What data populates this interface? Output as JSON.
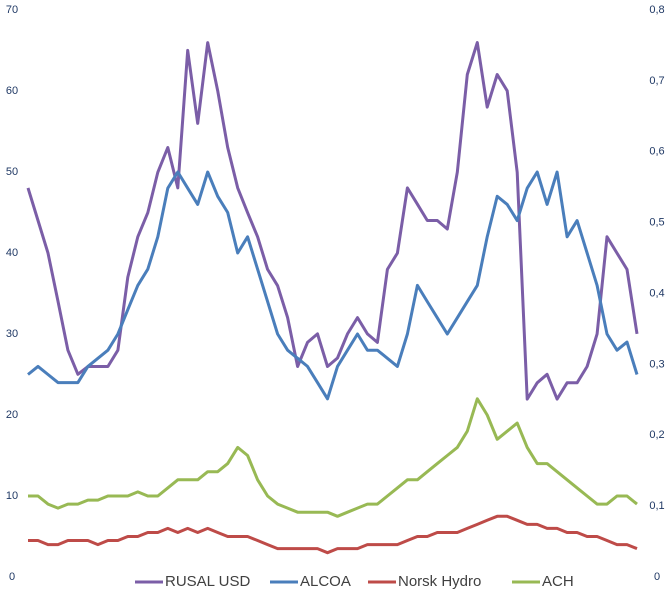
{
  "chart_data": {
    "type": "line",
    "ylim": [
      0,
      70
    ],
    "yticks": [
      0,
      10,
      20,
      30,
      40,
      50,
      60,
      70
    ],
    "y2lim": [
      0,
      0.8
    ],
    "y2ticks": [
      0,
      {
        "value": 0.1,
        "label": "0,1"
      },
      {
        "value": 0.2,
        "label": "0,2"
      },
      {
        "value": 0.3,
        "label": "0,3"
      },
      {
        "value": 0.4,
        "label": "0,4"
      },
      {
        "value": 0.5,
        "label": "0,5"
      },
      {
        "value": 0.6,
        "label": "0,6"
      },
      {
        "value": 0.7,
        "label": "0,7"
      },
      {
        "value": 0.8,
        "label": "0,8"
      }
    ],
    "grid": false,
    "legend": "bottom",
    "series": [
      {
        "name": "RUSAL USD",
        "color": "#7b5ea7",
        "axis": "y2",
        "values": [
          0.549,
          0.503,
          0.457,
          0.389,
          0.32,
          0.286,
          0.297,
          0.297,
          0.297,
          0.32,
          0.423,
          0.48,
          0.514,
          0.571,
          0.606,
          0.549,
          0.743,
          0.64,
          0.754,
          0.686,
          0.606,
          0.549,
          0.514,
          0.48,
          0.434,
          0.411,
          0.366,
          0.297,
          0.331,
          0.343,
          0.297,
          0.309,
          0.343,
          0.366,
          0.343,
          0.331,
          0.434,
          0.457,
          0.549,
          0.526,
          0.503,
          0.503,
          0.491,
          0.571,
          0.709,
          0.754,
          0.663,
          0.709,
          0.686,
          0.571,
          0.251,
          0.274,
          0.286,
          0.251,
          0.274,
          0.274,
          0.297,
          0.343,
          0.48,
          0.457,
          0.434,
          0.343
        ]
      },
      {
        "name": "ALCOA",
        "color": "#4a7ebb",
        "values": [
          25,
          26,
          25,
          24,
          24,
          24,
          26,
          27,
          28,
          30,
          33,
          36,
          38,
          42,
          48,
          50,
          48,
          46,
          50,
          47,
          45,
          40,
          42,
          38,
          34,
          30,
          28,
          27,
          26,
          24,
          22,
          26,
          28,
          30,
          28,
          28,
          27,
          26,
          30,
          36,
          34,
          32,
          30,
          32,
          34,
          36,
          42,
          47,
          46,
          44,
          48,
          50,
          46,
          50,
          42,
          44,
          40,
          36,
          30,
          28,
          29,
          25
        ]
      },
      {
        "name": "Norsk Hydro",
        "color": "#be4b48",
        "values": [
          4.5,
          4.5,
          4,
          4,
          4.5,
          4.5,
          4.5,
          4,
          4.5,
          4.5,
          5,
          5,
          5.5,
          5.5,
          6,
          5.5,
          6,
          5.5,
          6,
          5.5,
          5,
          5,
          5,
          4.5,
          4,
          3.5,
          3.5,
          3.5,
          3.5,
          3.5,
          3,
          3.5,
          3.5,
          3.5,
          4,
          4,
          4,
          4,
          4.5,
          5,
          5,
          5.5,
          5.5,
          5.5,
          6,
          6.5,
          7,
          7.5,
          7.5,
          7,
          6.5,
          6.5,
          6,
          6,
          5.5,
          5.5,
          5,
          5,
          4.5,
          4,
          4,
          3.5
        ]
      },
      {
        "name": "ACH",
        "color": "#98b954",
        "values": [
          10,
          10,
          9,
          8.5,
          9,
          9,
          9.5,
          9.5,
          10,
          10,
          10,
          10.5,
          10,
          10,
          11,
          12,
          12,
          12,
          13,
          13,
          14,
          16,
          15,
          12,
          10,
          9,
          8.5,
          8,
          8,
          8,
          8,
          7.5,
          8,
          8.5,
          9,
          9,
          10,
          11,
          12,
          12,
          13,
          14,
          15,
          16,
          18,
          22,
          20,
          17,
          18,
          19,
          16,
          14,
          14,
          13,
          12,
          11,
          10,
          9,
          9,
          10,
          10,
          9
        ]
      }
    ]
  }
}
